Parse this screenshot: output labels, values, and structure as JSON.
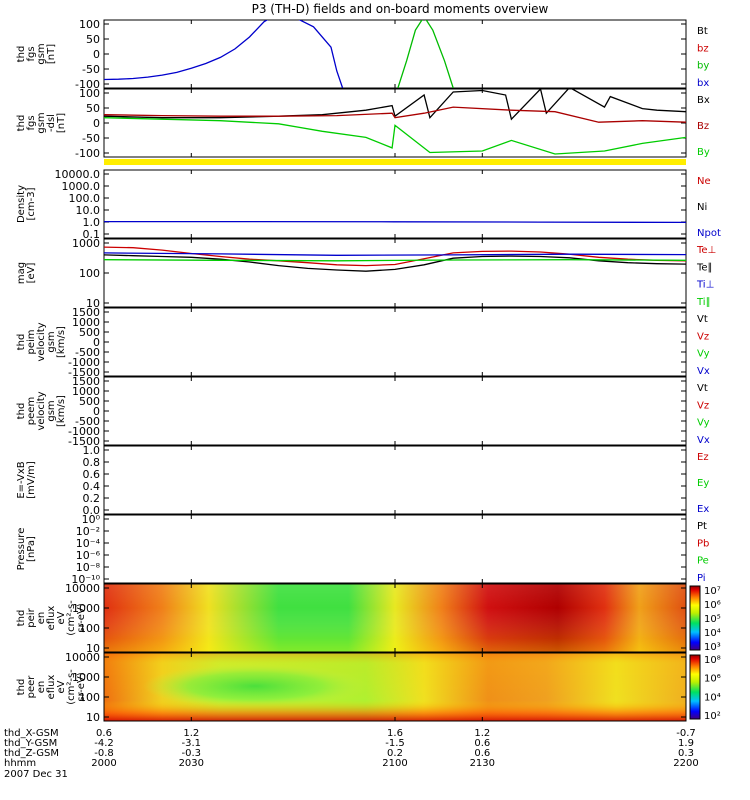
{
  "title": "P3 (TH-D) fields and on-board moments overview",
  "date_label": "2007 Dec 31",
  "chart_data": [
    {
      "id": "fgs",
      "type": "line",
      "ylabel": [
        "thd",
        "fgs",
        "gsm",
        "[nT]"
      ],
      "yticks": [
        "100",
        "50",
        "0",
        "-50",
        "-100"
      ],
      "ylim": [
        -100,
        100
      ],
      "legend": [
        {
          "name": "Bt",
          "color": "#000000"
        },
        {
          "name": "bz",
          "color": "#cc0000"
        },
        {
          "name": "by",
          "color": "#00bb00"
        },
        {
          "name": "bx",
          "color": "#0000cc"
        }
      ],
      "series": [
        {
          "name": "bx",
          "color": "#0000cc",
          "x": [
            2000,
            2005,
            2010,
            2015,
            2020,
            2025,
            2030,
            2035,
            2040,
            2045,
            2050,
            2055,
            2058,
            2065,
            2072,
            2078,
            2080,
            2082
          ],
          "y": [
            -75,
            -74,
            -72,
            -68,
            -62,
            -54,
            -42,
            -28,
            -10,
            15,
            50,
            95,
            110,
            110,
            80,
            20,
            -50,
            -100
          ]
        },
        {
          "name": "by",
          "color": "#00bb00",
          "x": [
            2101,
            2104,
            2107,
            2110,
            2113,
            2117,
            2120
          ],
          "y": [
            -100,
            -20,
            70,
            110,
            70,
            -20,
            -100
          ]
        }
      ]
    },
    {
      "id": "fgs_dsl",
      "type": "line",
      "ylabel": [
        "thd",
        "fgs",
        "gsm",
        "-dsl",
        "[nT]"
      ],
      "yticks": [
        "100",
        "50",
        "0",
        "-50",
        "-100"
      ],
      "ylim": [
        -125,
        100
      ],
      "legend": [
        {
          "name": "Bx",
          "color": "#000000"
        },
        {
          "name": "Bz",
          "color": "#aa0000"
        },
        {
          "name": "By",
          "color": "#00cc00"
        }
      ],
      "series": [
        {
          "name": "Bx",
          "color": "#000000",
          "x": [
            2000,
            2020,
            2040,
            2060,
            2075,
            2090,
            2099,
            2100,
            2110,
            2112,
            2120,
            2130,
            2138,
            2140,
            2150,
            2152,
            2160,
            2172,
            2174,
            2185,
            2190,
            2200
          ],
          "y": [
            10,
            5,
            5,
            10,
            15,
            30,
            45,
            10,
            80,
            5,
            90,
            95,
            80,
            0,
            100,
            20,
            105,
            40,
            75,
            35,
            30,
            25
          ]
        },
        {
          "name": "Bz",
          "color": "#aa0000",
          "x": [
            2000,
            2020,
            2040,
            2060,
            2080,
            2099,
            2100,
            2110,
            2120,
            2140,
            2155,
            2170,
            2185,
            2200
          ],
          "y": [
            15,
            12,
            10,
            10,
            12,
            20,
            5,
            20,
            40,
            30,
            25,
            -10,
            -5,
            -10
          ]
        },
        {
          "name": "By",
          "color": "#00cc00",
          "x": [
            2000,
            2020,
            2040,
            2060,
            2075,
            2090,
            2099,
            2100,
            2112,
            2130,
            2140,
            2155,
            2172,
            2185,
            2200
          ],
          "y": [
            5,
            0,
            -5,
            -15,
            -40,
            -60,
            -95,
            -20,
            -110,
            -105,
            -70,
            -115,
            -105,
            -80,
            -60
          ]
        }
      ]
    },
    {
      "id": "density",
      "type": "line",
      "log": true,
      "ylabel": [
        "Density",
        "[cm-3]"
      ],
      "yticks": [
        "10000.0",
        "1000.0",
        "100.0",
        "10.0",
        "1.0",
        "0.1"
      ],
      "ylim": [
        0.1,
        30000
      ],
      "legend": [
        {
          "name": "Ne",
          "color": "#cc0000"
        },
        {
          "name": "Ni",
          "color": "#000000"
        },
        {
          "name": "Npot",
          "color": "#0000cc"
        }
      ],
      "series": [
        {
          "name": "Npot",
          "color": "#0000cc",
          "x": [
            2000,
            2050,
            2100,
            2150,
            2200
          ],
          "y": [
            2.1,
            2.1,
            2.0,
            1.9,
            1.8
          ]
        }
      ]
    },
    {
      "id": "temp",
      "type": "line",
      "log": true,
      "ylabel": [
        "mag",
        "[eV]"
      ],
      "yticks": [
        "1000",
        "100",
        "10"
      ],
      "ylim": [
        7,
        1200
      ],
      "legend": [
        {
          "name": "Te⊥",
          "color": "#cc0000"
        },
        {
          "name": "Te∥",
          "color": "#000000"
        },
        {
          "name": "Ti⊥",
          "color": "#0000cc"
        },
        {
          "name": "Ti∥",
          "color": "#00cc00"
        }
      ],
      "series": [
        {
          "name": "Te⊥",
          "color": "#cc0000",
          "x": [
            2000,
            2010,
            2020,
            2030,
            2040,
            2050,
            2060,
            2070,
            2080,
            2090,
            2100,
            2110,
            2120,
            2130,
            2140,
            2150,
            2160,
            2170,
            2180,
            2190,
            2200
          ],
          "y": [
            650,
            620,
            520,
            400,
            320,
            260,
            230,
            200,
            170,
            160,
            175,
            270,
            420,
            470,
            480,
            450,
            380,
            300,
            260,
            240,
            230
          ]
        },
        {
          "name": "Te∥",
          "color": "#000000",
          "x": [
            2000,
            2010,
            2020,
            2030,
            2040,
            2050,
            2060,
            2070,
            2080,
            2090,
            2100,
            2110,
            2120,
            2130,
            2140,
            2150,
            2160,
            2170,
            2180,
            2190,
            2200
          ],
          "y": [
            360,
            340,
            320,
            300,
            260,
            210,
            160,
            130,
            115,
            105,
            120,
            170,
            280,
            320,
            330,
            320,
            290,
            230,
            200,
            185,
            180
          ]
        },
        {
          "name": "Ti⊥",
          "color": "#0000cc",
          "x": [
            2000,
            2040,
            2080,
            2120,
            2160,
            2200
          ],
          "y": [
            420,
            390,
            350,
            360,
            380,
            370
          ]
        },
        {
          "name": "Ti∥",
          "color": "#00cc00",
          "x": [
            2000,
            2040,
            2080,
            2120,
            2160,
            2200
          ],
          "y": [
            250,
            240,
            230,
            245,
            250,
            240
          ]
        }
      ]
    },
    {
      "id": "peim",
      "type": "line",
      "ylabel": [
        "thd",
        "peim",
        "velocity",
        "gsm",
        "[km/s]"
      ],
      "yticks": [
        "1500",
        "1000",
        "500",
        "0",
        "-500",
        "-1000",
        "-1500"
      ],
      "ylim": [
        -1500,
        1500
      ],
      "legend": [
        {
          "name": "Vt",
          "color": "#000000"
        },
        {
          "name": "Vz",
          "color": "#cc0000"
        },
        {
          "name": "Vy",
          "color": "#00cc00"
        },
        {
          "name": "Vx",
          "color": "#0000cc"
        }
      ],
      "series": []
    },
    {
      "id": "peem",
      "type": "line",
      "ylabel": [
        "thd",
        "peem",
        "velocity",
        "gsm",
        "[km/s]"
      ],
      "yticks": [
        "1500",
        "1000",
        "500",
        "0",
        "-500",
        "-1000",
        "-1500"
      ],
      "ylim": [
        -1500,
        1500
      ],
      "legend": [
        {
          "name": "Vt",
          "color": "#000000"
        },
        {
          "name": "Vz",
          "color": "#cc0000"
        },
        {
          "name": "Vy",
          "color": "#00cc00"
        },
        {
          "name": "Vx",
          "color": "#0000cc"
        }
      ],
      "series": []
    },
    {
      "id": "efield",
      "type": "line",
      "ylabel": [
        "E=-VxB",
        "[mV/m]"
      ],
      "yticks": [
        "1.0",
        "0.8",
        "0.6",
        "0.4",
        "0.2",
        "0.0"
      ],
      "ylim": [
        0,
        1
      ],
      "legend": [
        {
          "name": "Ez",
          "color": "#cc0000"
        },
        {
          "name": "Ey",
          "color": "#00cc00"
        },
        {
          "name": "Ex",
          "color": "#0000cc"
        }
      ],
      "series": []
    },
    {
      "id": "pressure",
      "type": "line",
      "log": true,
      "ylabel": [
        "Pressure",
        "[nPa]"
      ],
      "yticks": [
        "10⁰",
        "10⁻²",
        "10⁻⁴",
        "10⁻⁶",
        "10⁻⁸",
        "10⁻¹⁰"
      ],
      "ylim": [
        1e-10,
        1
      ],
      "legend": [
        {
          "name": "Pt",
          "color": "#000000"
        },
        {
          "name": "Pb",
          "color": "#cc0000"
        },
        {
          "name": "Pe",
          "color": "#00cc00"
        },
        {
          "name": "Pi",
          "color": "#0000cc"
        }
      ],
      "series": []
    },
    {
      "id": "peir",
      "type": "heatmap",
      "ylabel": [
        "thd",
        "peir",
        "en",
        "eflux",
        "eV",
        "(cm²-s-",
        "sr-eV)"
      ],
      "yticks": [
        "10000",
        "1000",
        "100",
        "10"
      ],
      "ylim": [
        5,
        25000
      ],
      "colorbar_ticks": [
        "10⁷",
        "10⁶",
        "10⁵",
        "10⁴",
        "10³"
      ],
      "colorbar_range": [
        1000,
        10000000
      ]
    },
    {
      "id": "peer",
      "type": "heatmap",
      "ylabel": [
        "thd",
        "peer",
        "en",
        "eflux",
        "eV",
        "(cm²-s-",
        "sr-eV)"
      ],
      "yticks": [
        "10000",
        "1000",
        "100",
        "10"
      ],
      "ylim": [
        5,
        25000
      ],
      "colorbar_ticks": [
        "10⁸",
        "10⁶",
        "10⁴",
        "10²"
      ],
      "colorbar_range": [
        100,
        100000000
      ]
    }
  ],
  "xaxis": {
    "xlim": [
      2000,
      2200
    ],
    "tick_values": [
      2000,
      2030,
      2100,
      2130,
      2200
    ],
    "rows": [
      {
        "label": "thd_X-GSM",
        "values": [
          "0.6",
          "1.2",
          "1.6",
          "1.2",
          "-0.7"
        ]
      },
      {
        "label": "thd_Y-GSM",
        "values": [
          "-4.2",
          "-3.1",
          "-1.5",
          "0.6",
          "1.9"
        ]
      },
      {
        "label": "thd_Z-GSM",
        "values": [
          "-0.8",
          "-0.3",
          "0.2",
          "0.6",
          "0.3"
        ]
      },
      {
        "label": "hhmm",
        "values": [
          "2000",
          "2030",
          "2100",
          "2130",
          "2200"
        ]
      }
    ]
  }
}
